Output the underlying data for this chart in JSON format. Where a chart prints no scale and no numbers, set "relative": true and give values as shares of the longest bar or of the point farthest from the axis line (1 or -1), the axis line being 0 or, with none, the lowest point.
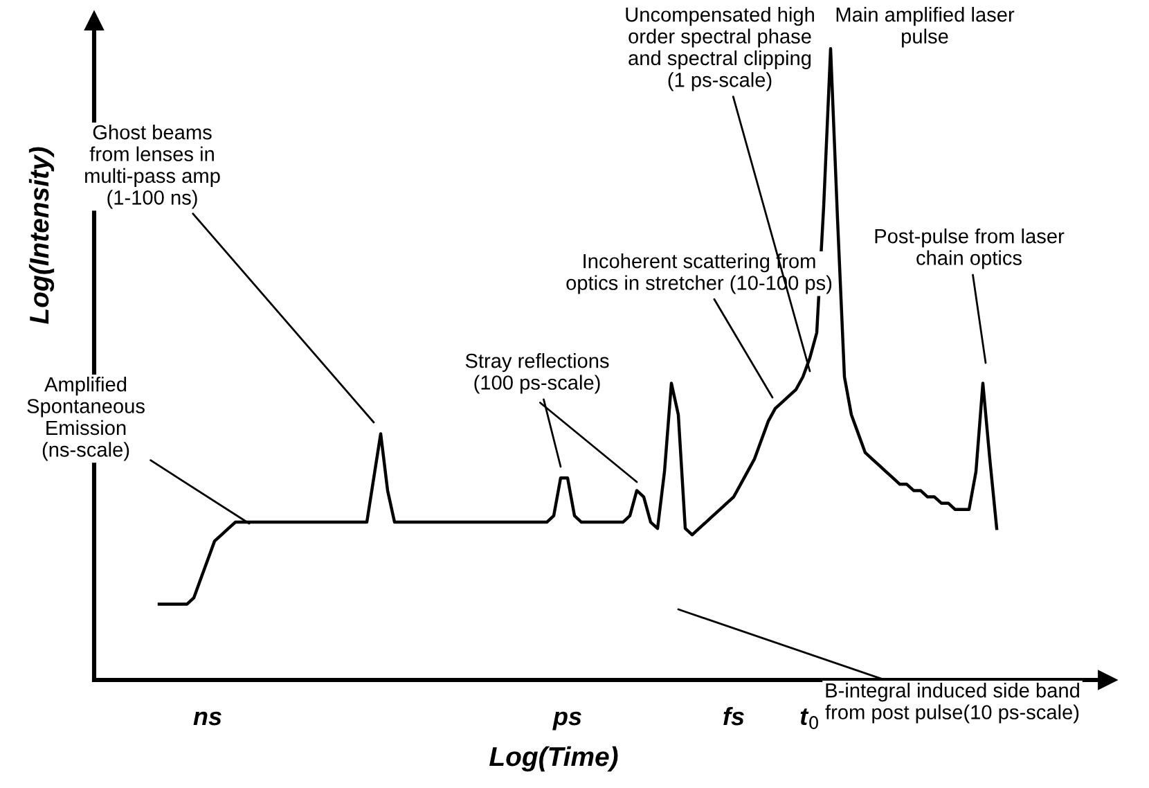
{
  "chart_data": {
    "type": "line",
    "relative": true,
    "tick_labels": "x",
    "xlabel": "Log(Time)",
    "ylabel": "Log(Intensity)",
    "categories": [
      null,
      null,
      null,
      null,
      null,
      null,
      null,
      "ns",
      null,
      null,
      null,
      null,
      null,
      null,
      null,
      null,
      null,
      null,
      null,
      null,
      null,
      null,
      null,
      null,
      null,
      null,
      null,
      null,
      null,
      null,
      null,
      null,
      null,
      null,
      null,
      null,
      null,
      null,
      null,
      null,
      null,
      null,
      null,
      null,
      null,
      null,
      null,
      null,
      null,
      null,
      null,
      null,
      null,
      null,
      null,
      null,
      null,
      null,
      null,
      "ps",
      null,
      null,
      null,
      null,
      null,
      null,
      null,
      null,
      null,
      null,
      null,
      null,
      null,
      null,
      null,
      null,
      null,
      null,
      null,
      null,
      null,
      null,
      null,
      "fs",
      null,
      null,
      null,
      null,
      null,
      null,
      null,
      null,
      null,
      null,
      "t$_{0}$",
      null,
      null,
      null,
      null,
      null,
      null,
      null,
      null,
      null,
      null,
      null,
      null,
      null,
      null,
      null,
      null,
      null,
      null,
      null,
      null,
      null,
      null,
      null,
      null,
      null,
      null,
      null
    ],
    "series": [
      {
        "color": "#000000",
        "values": [
          0.12,
          0.12,
          0.12,
          0.12,
          0.12,
          0.13,
          0.16,
          0.19,
          0.22,
          0.23,
          0.24,
          0.25,
          0.25,
          0.25,
          0.25,
          0.25,
          0.25,
          0.25,
          0.25,
          0.25,
          0.25,
          0.25,
          0.25,
          0.25,
          0.25,
          0.25,
          0.25,
          0.25,
          0.25,
          0.25,
          0.25,
          0.32,
          0.39,
          0.3,
          0.25,
          0.25,
          0.25,
          0.25,
          0.25,
          0.25,
          0.25,
          0.25,
          0.25,
          0.25,
          0.25,
          0.25,
          0.25,
          0.25,
          0.25,
          0.25,
          0.25,
          0.25,
          0.25,
          0.25,
          0.25,
          0.25,
          0.25,
          0.26,
          0.32,
          0.32,
          0.26,
          0.25,
          0.25,
          0.25,
          0.25,
          0.25,
          0.25,
          0.25,
          0.26,
          0.3,
          0.29,
          0.25,
          0.24,
          0.33,
          0.47,
          0.42,
          0.24,
          0.23,
          0.24,
          0.25,
          0.26,
          0.27,
          0.28,
          0.29,
          0.31,
          0.33,
          0.35,
          0.38,
          0.41,
          0.43,
          0.44,
          0.45,
          0.46,
          0.48,
          0.51,
          0.55,
          0.75,
          1,
          0.73,
          0.48,
          0.42,
          0.39,
          0.36,
          0.35,
          0.34,
          0.33,
          0.32,
          0.31,
          0.31,
          0.3,
          0.3,
          0.29,
          0.29,
          0.28,
          0.28,
          0.27,
          0.27,
          0.27,
          0.33,
          0.47,
          0.35,
          0.24
        ]
      }
    ],
    "annotations": [
      "Amplified\nSpontaneous\nEmission\n(ns-scale)",
      "Ghost beams\nfrom lenses in\nmulti-pass amp\n(1-100 ns)",
      "Stray reflections\n(100 ps-scale)",
      "Incoherent scattering from\noptics in stretcher (10-100 ps)",
      "Uncompensated high\norder spectral phase\nand spectral clipping\n(1 ps-scale)",
      "Main amplified laser\npulse",
      "Post-pulse from laser\nchain optics",
      "B-integral induced side band\nfrom post pulse(10 ps-scale)"
    ]
  }
}
